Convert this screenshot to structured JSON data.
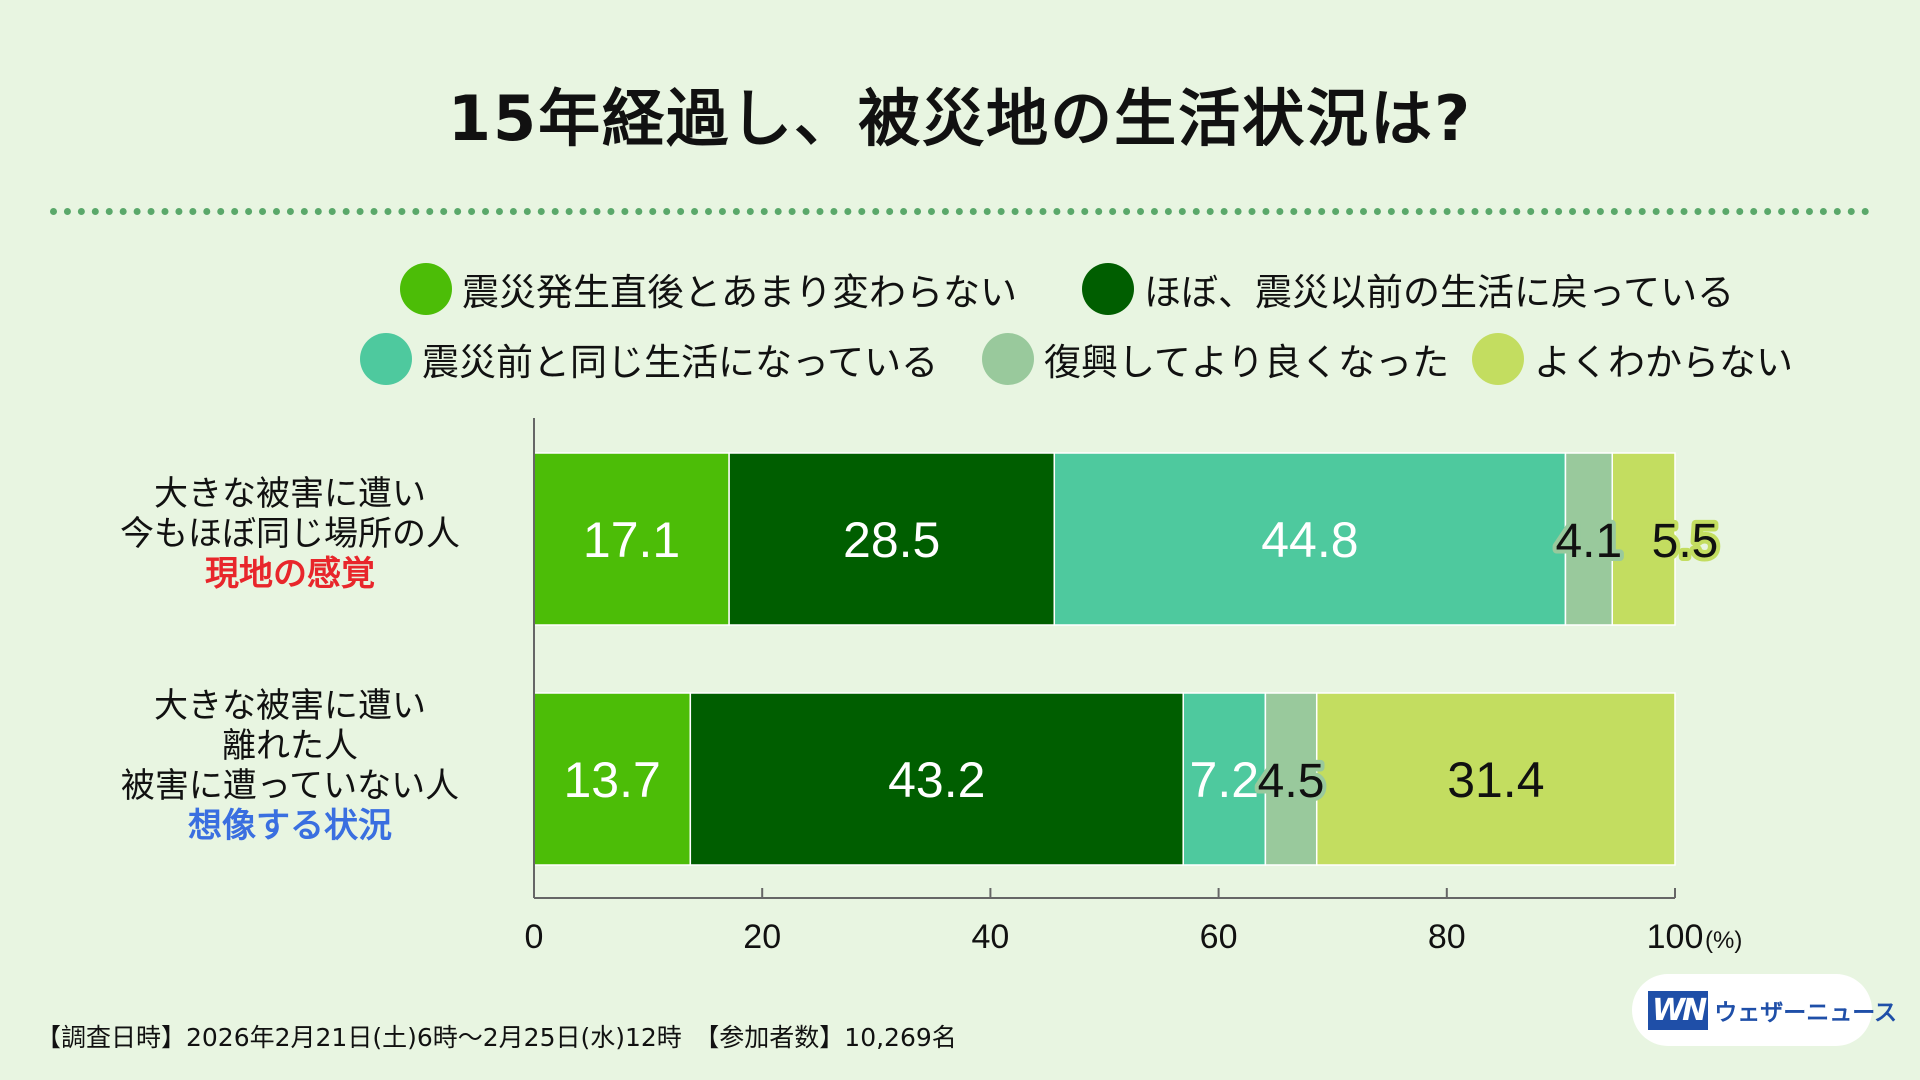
{
  "title": "15年経過し、被災地の生活状況は?",
  "legend": [
    {
      "label": "震災発生直後とあまり変わらない",
      "color": "#4cbd07"
    },
    {
      "label": "ほぼ、震災以前の生活に戻っている",
      "color": "#005e00"
    },
    {
      "label": "震災前と同じ生活になっている",
      "color": "#4ec99e"
    },
    {
      "label": "復興してより良くなった",
      "color": "#99c99c"
    },
    {
      "label": "よくわからない",
      "color": "#c3dd60"
    }
  ],
  "categories": [
    {
      "lines": [
        "大きな被害に遭い",
        "今もほぼ同じ場所の人"
      ],
      "highlight": "現地の感覚",
      "highlight_color": "#e8262b"
    },
    {
      "lines": [
        "大きな被害に遭い",
        "離れた人",
        "被害に遭っていない人"
      ],
      "highlight": "想像する状況",
      "highlight_color": "#3a6fe0"
    }
  ],
  "chart_data": {
    "type": "bar",
    "orientation": "horizontal",
    "stacked": true,
    "categories": [
      "大きな被害に遭い 今もほぼ同じ場所の人 現地の感覚",
      "大きな被害に遭い 離れた人 被害に遭っていない人 想像する状況"
    ],
    "series": [
      {
        "name": "震災発生直後とあまり変わらない",
        "values": [
          17.1,
          13.7
        ]
      },
      {
        "name": "ほぼ、震災以前の生活に戻っている",
        "values": [
          28.5,
          43.2
        ]
      },
      {
        "name": "震災前と同じ生活になっている",
        "values": [
          44.8,
          7.2
        ]
      },
      {
        "name": "復興してより良くなった",
        "values": [
          4.1,
          4.5
        ]
      },
      {
        "name": "よくわからない",
        "values": [
          5.5,
          31.4
        ]
      }
    ],
    "value_label_colors": [
      [
        "#ffffff",
        "#ffffff"
      ],
      [
        "#ffffff",
        "#ffffff"
      ],
      [
        "#ffffff",
        "#ffffff"
      ],
      [
        "#111111",
        "#111111"
      ],
      [
        "#111111",
        "#111111"
      ]
    ],
    "xlim": [
      0,
      100
    ],
    "xticks": [
      "0",
      "20",
      "40",
      "60",
      "80",
      "100"
    ],
    "xunit": "(%)",
    "title": "15年経過し、被災地の生活状況は?",
    "legend_position": "top"
  },
  "footer": "【調査日時】2026年2月21日(土)6時〜2月25日(水)12時　【参加者数】10,269名",
  "logo": {
    "mark": "WN",
    "text": "ウェザーニュース"
  }
}
